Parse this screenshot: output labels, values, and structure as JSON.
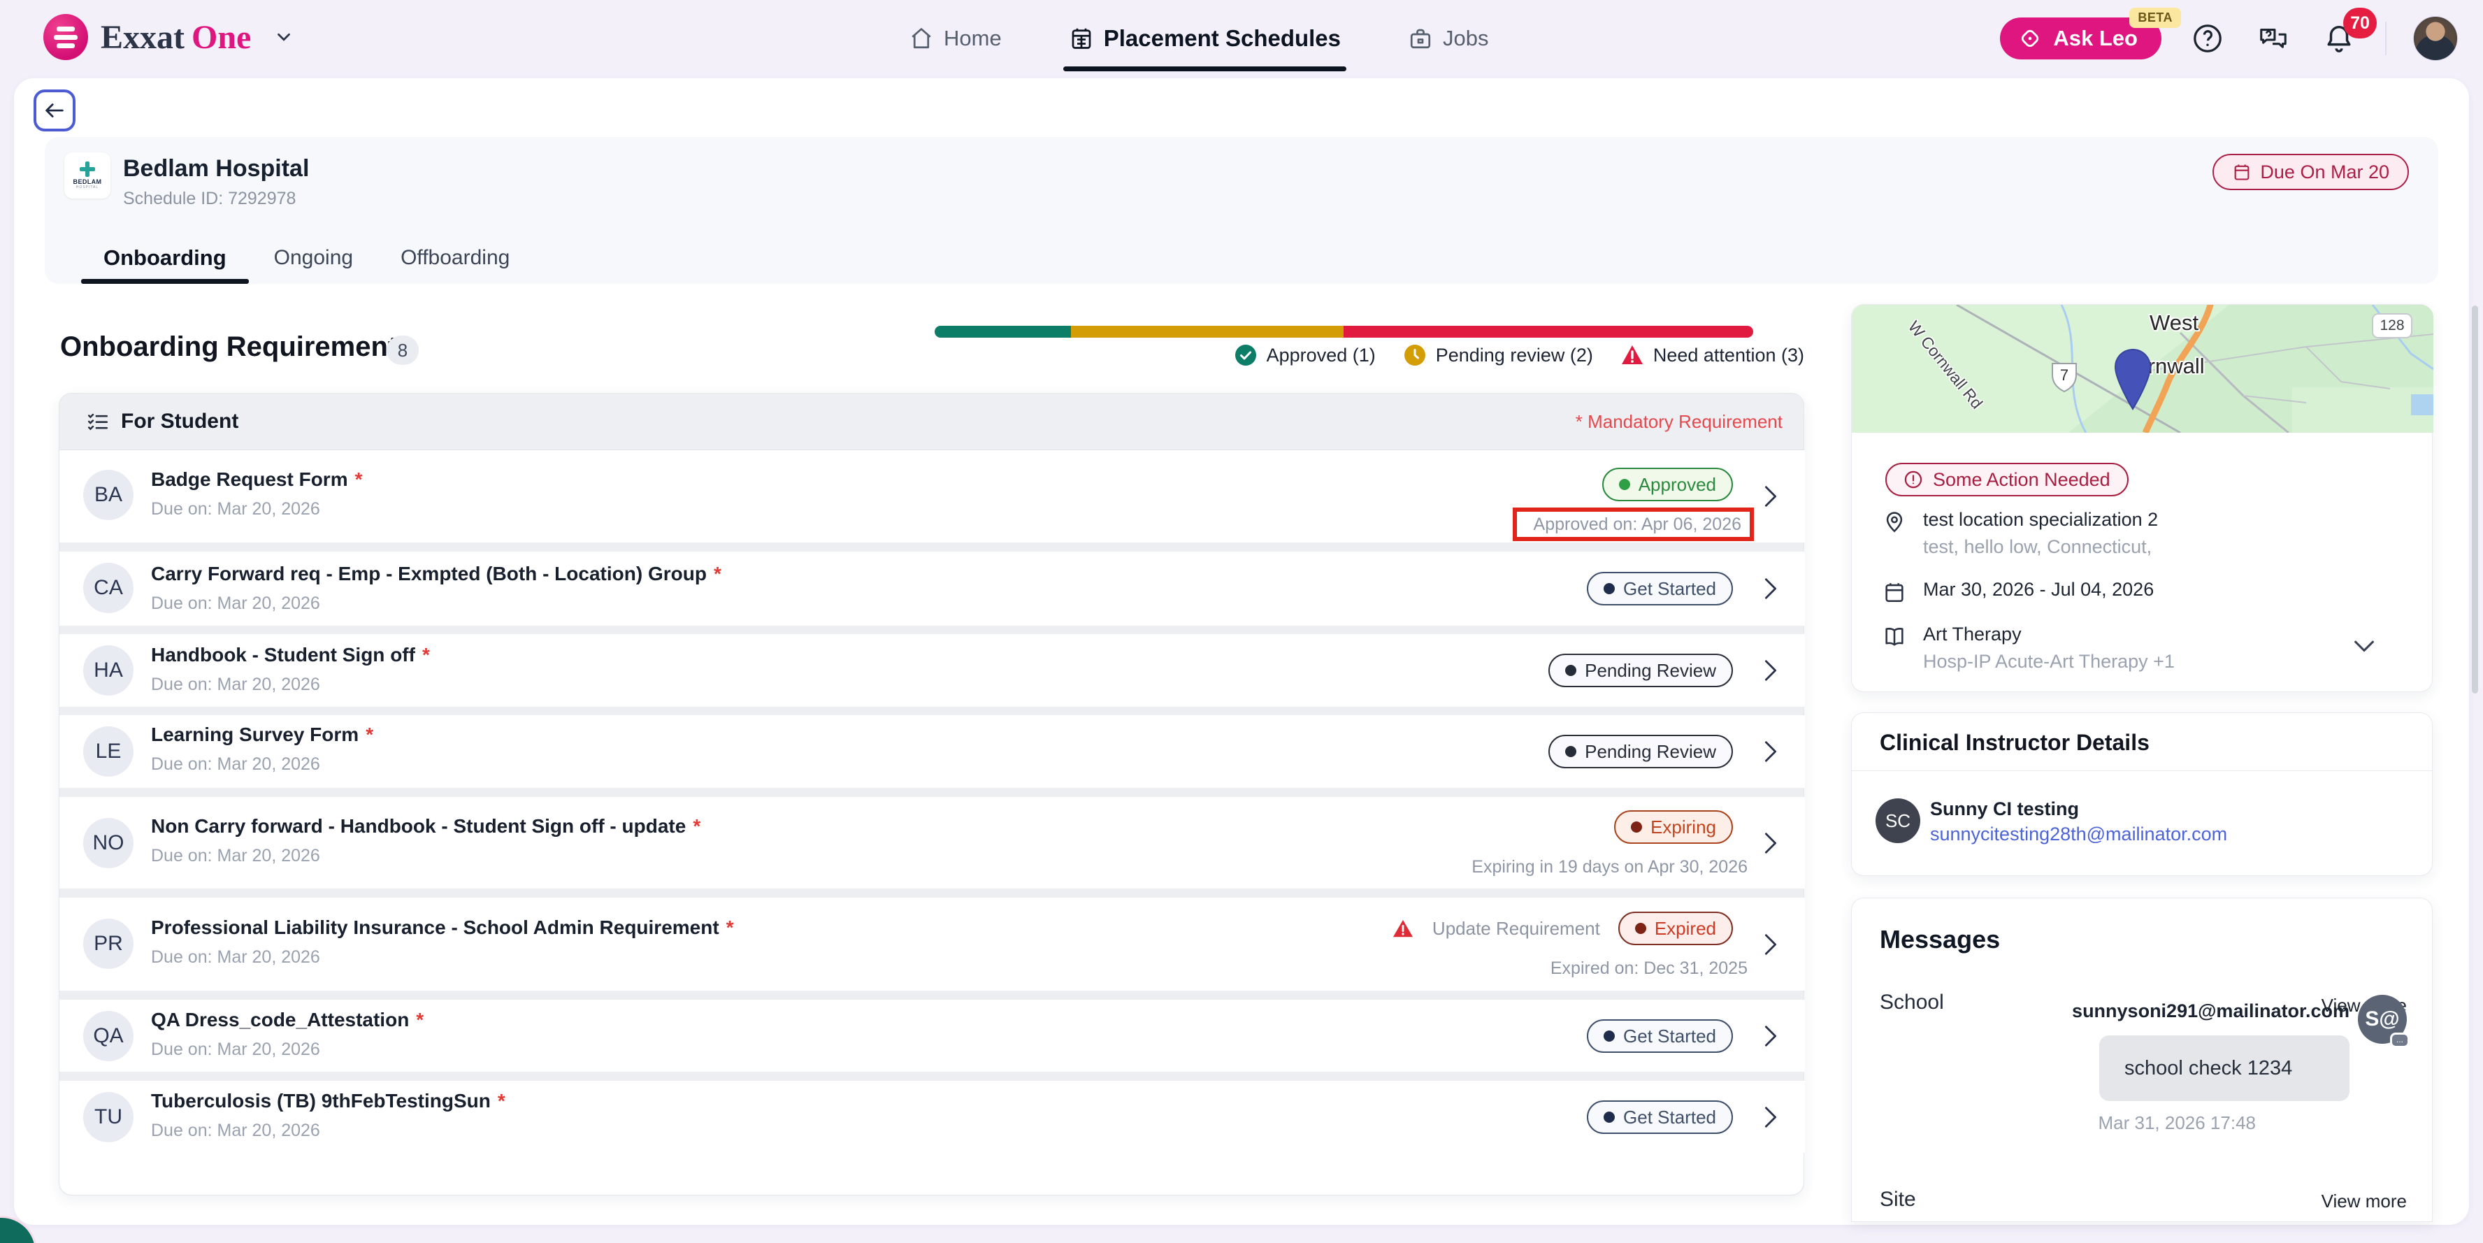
{
  "colors": {
    "brand_pink": "#df1580",
    "nav_active": "#0c1422",
    "approved_green": "#2b8a3e",
    "pending_gold": "#d39d05",
    "attention_red": "#e11b3f",
    "teal_progress": "#0c7d66",
    "due_red": "#ab1e45",
    "expired_red": "#cf3a23",
    "expiring_orange": "#c1441f",
    "slate": "#3f4f68",
    "link_blue": "#4d63d8",
    "annotation_red": "#e1251b",
    "map_pin": "#4553b8"
  },
  "header": {
    "brand_1": "Exxat",
    "brand_2": "One",
    "nav": [
      {
        "label": "Home"
      },
      {
        "label": "Placement Schedules"
      },
      {
        "label": "Jobs"
      }
    ],
    "ask_leo": "Ask Leo",
    "beta": "BETA",
    "notification_count": "70"
  },
  "banner": {
    "hospital": "Bedlam Hospital",
    "schedule_id": "Schedule ID: 7292978",
    "logo_line1": "BEDLAM",
    "logo_line2": "HOSPITAL",
    "due_badge": "Due On Mar 20",
    "tabs": [
      {
        "label": "Onboarding"
      },
      {
        "label": "Ongoing"
      },
      {
        "label": "Offboarding"
      }
    ]
  },
  "requirements": {
    "title": "Onboarding Requirements",
    "count": "8",
    "star": "*",
    "section": "For Student",
    "mandatory_note": "* Mandatory Requirement",
    "legend": [
      {
        "label": "Approved (1)"
      },
      {
        "label": "Pending review (2)"
      },
      {
        "label": "Need attention (3)"
      }
    ],
    "progress": {
      "approved": 1,
      "pending": 2,
      "need_attention": 3
    },
    "rows": [
      {
        "initials": "BA",
        "title": "Badge Request Form",
        "due": "Due on: Mar 20, 2026",
        "status": "Approved",
        "sub": "Approved on: Apr 06, 2026"
      },
      {
        "initials": "CA",
        "title": "Carry Forward req - Emp - Exmpted (Both - Location) Group",
        "due": "Due on: Mar 20, 2026",
        "status": "Get Started"
      },
      {
        "initials": "HA",
        "title": "Handbook - Student Sign off",
        "due": "Due on: Mar 20, 2026",
        "status": "Pending Review"
      },
      {
        "initials": "LE",
        "title": "Learning Survey Form",
        "due": "Due on: Mar 20, 2026",
        "status": "Pending Review"
      },
      {
        "initials": "NO",
        "title": "Non Carry forward - Handbook - Student Sign off - update",
        "due": "Due on: Mar 20, 2026",
        "status": "Expiring",
        "sub": "Expiring in 19 days on Apr 30, 2026"
      },
      {
        "initials": "PR",
        "title": "Professional Liability Insurance - School Admin Requirement",
        "due": "Due on: Mar 20, 2026",
        "status": "Expired",
        "warn": "Update Requirement",
        "sub": "Expired on: Dec 31, 2025"
      },
      {
        "initials": "QA",
        "title": "QA Dress_code_Attestation",
        "due": "Due on: Mar 20, 2026",
        "status": "Get Started"
      },
      {
        "initials": "TU",
        "title": "Tuberculosis (TB) 9thFebTestingSun",
        "due": "Due on: Mar 20, 2026",
        "status": "Get Started"
      }
    ]
  },
  "sidebar": {
    "map": {
      "town_line1": "West",
      "town_line2": "Cornwall",
      "road_label": "W Cornwall Rd",
      "shield": "7",
      "badge": "128"
    },
    "action_badge": "Some Action Needed",
    "location": {
      "name": "test location specialization 2",
      "address": "test, hello low, Connecticut,"
    },
    "dates": "Mar 30, 2026 - Jul 04, 2026",
    "program": {
      "name": "Art Therapy",
      "detail": "Hosp-IP Acute-Art Therapy  +1"
    },
    "ci": {
      "title": "Clinical Instructor Details",
      "initials": "SC",
      "name": "Sunny CI testing",
      "email": "sunnycitesting28th@mailinator.com"
    },
    "messages": {
      "title": "Messages",
      "school_label": "School",
      "school_view_more": "View more",
      "sender": "sunnysoni291@mailinator.com",
      "sender_avatar": "S@",
      "bubble": "school check 1234",
      "timestamp": "Mar 31, 2026 17:48",
      "site_label": "Site",
      "site_view_more": "View more"
    }
  }
}
